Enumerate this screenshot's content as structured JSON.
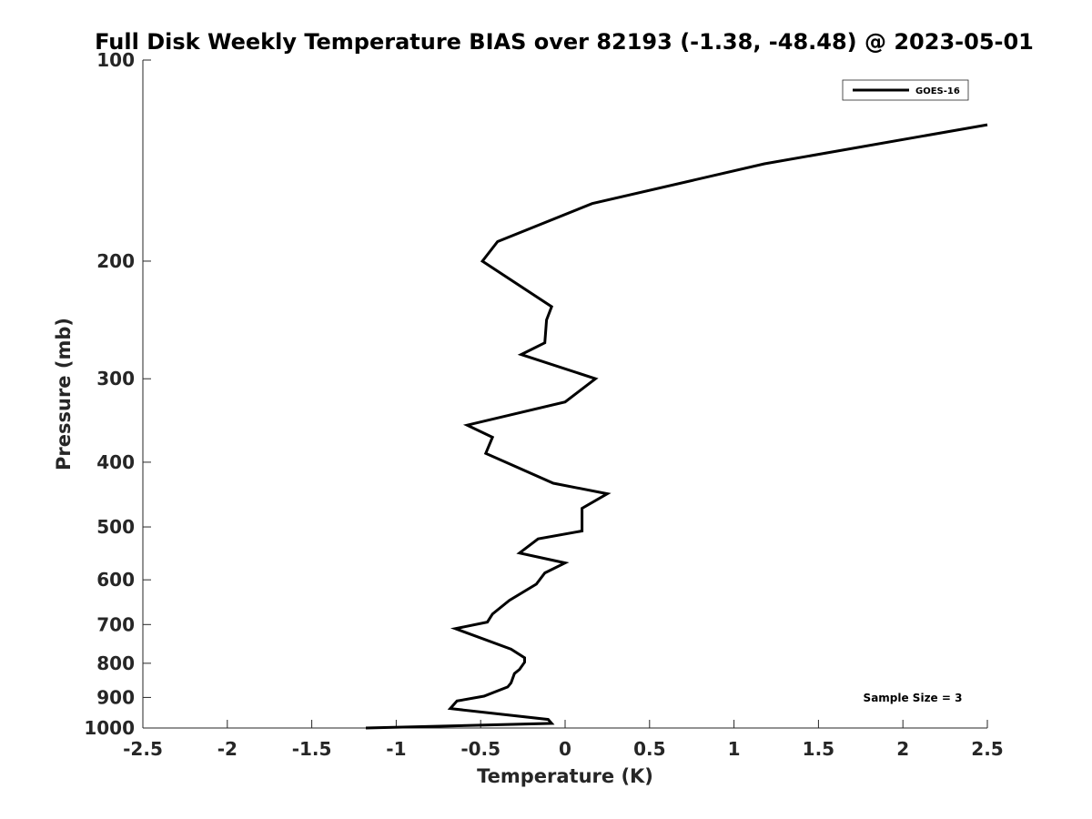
{
  "chart_data": {
    "type": "line",
    "title": "Full Disk Weekly Temperature BIAS over 82193 (-1.38, -48.48) @ 2023-05-01",
    "xlabel": "Temperature (K)",
    "ylabel": "Pressure (mb)",
    "xlim": [
      -2.5,
      2.5
    ],
    "ylim": [
      1000,
      100
    ],
    "y_scale": "log",
    "y_reversed": true,
    "grid": false,
    "x_ticks": [
      -2.5,
      -2,
      -1.5,
      -1,
      -0.5,
      0,
      0.5,
      1,
      1.5,
      2,
      2.5
    ],
    "x_tick_labels": [
      "-2.5",
      "-2",
      "-1.5",
      "-1",
      "-0.5",
      "0",
      "0.5",
      "1",
      "1.5",
      "2",
      "2.5"
    ],
    "y_ticks": [
      100,
      200,
      300,
      400,
      500,
      600,
      700,
      800,
      900,
      1000
    ],
    "y_tick_labels": [
      "100",
      "200",
      "300",
      "400",
      "500",
      "600",
      "700",
      "800",
      "900",
      "1000"
    ],
    "legend": {
      "placement": "top-right",
      "entries": [
        "GOES-16"
      ]
    },
    "annotation": "Sample Size = 3",
    "series": [
      {
        "name": "GOES-16",
        "color": "#000000",
        "points": [
          [
            2.5,
            125
          ],
          [
            1.18,
            143
          ],
          [
            0.16,
            164
          ],
          [
            -0.4,
            187
          ],
          [
            -0.49,
            200
          ],
          [
            -0.08,
            234
          ],
          [
            -0.11,
            245
          ],
          [
            -0.12,
            265
          ],
          [
            -0.26,
            276
          ],
          [
            0.18,
            300
          ],
          [
            0,
            325
          ],
          [
            -0.58,
            352
          ],
          [
            -0.43,
            367
          ],
          [
            -0.47,
            388
          ],
          [
            -0.07,
            430
          ],
          [
            0.25,
            446
          ],
          [
            0.1,
            469
          ],
          [
            0.1,
            479
          ],
          [
            0.1,
            507
          ],
          [
            -0.16,
            521
          ],
          [
            -0.27,
            547
          ],
          [
            0,
            566
          ],
          [
            -0.12,
            586
          ],
          [
            -0.17,
            609
          ],
          [
            -0.33,
            644
          ],
          [
            -0.43,
            675
          ],
          [
            -0.46,
            694
          ],
          [
            -0.65,
            710
          ],
          [
            -0.32,
            762
          ],
          [
            -0.24,
            785
          ],
          [
            -0.24,
            797
          ],
          [
            -0.27,
            817
          ],
          [
            -0.3,
            829
          ],
          [
            -0.32,
            856
          ],
          [
            -0.34,
            868
          ],
          [
            -0.48,
            896
          ],
          [
            -0.64,
            911
          ],
          [
            -0.68,
            935
          ],
          [
            -0.1,
            971
          ],
          [
            -0.08,
            984
          ],
          [
            -1.18,
            1000
          ]
        ]
      }
    ]
  }
}
